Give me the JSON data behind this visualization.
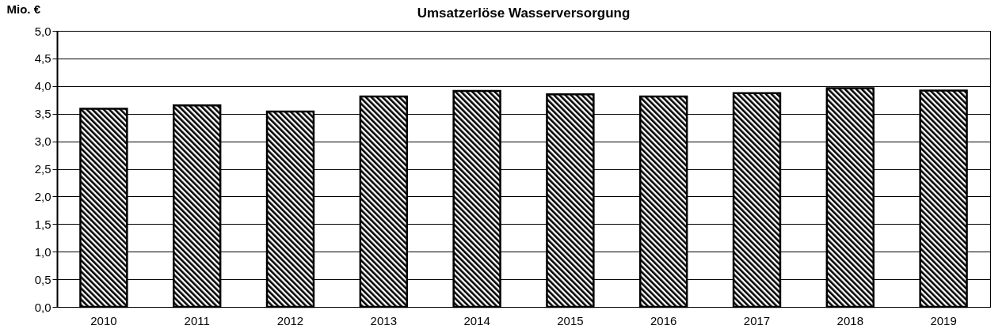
{
  "chart_data": {
    "type": "bar",
    "title": "Umsatzerlöse Wasserversorgung",
    "ylabel": "Mio. €",
    "categories": [
      "2010",
      "2011",
      "2012",
      "2013",
      "2014",
      "2015",
      "2016",
      "2017",
      "2018",
      "2019"
    ],
    "values": [
      3.59,
      3.65,
      3.54,
      3.81,
      3.91,
      3.85,
      3.81,
      3.87,
      3.96,
      3.92
    ],
    "color": "#000000",
    "ylim": [
      0,
      5
    ],
    "yticks": [
      {
        "value": 0,
        "label": "0,0"
      },
      {
        "value": 0.5,
        "label": "0,5"
      },
      {
        "value": 1,
        "label": "1,0"
      },
      {
        "value": 1.5,
        "label": "1,5"
      },
      {
        "value": 2,
        "label": "2,0"
      },
      {
        "value": 2.5,
        "label": "2,5"
      },
      {
        "value": 3,
        "label": "3,0"
      },
      {
        "value": 3.5,
        "label": "3,5"
      },
      {
        "value": 4,
        "label": "4,0"
      },
      {
        "value": 4.5,
        "label": "4,5"
      },
      {
        "value": 5,
        "label": "5,0"
      }
    ],
    "grid": "y"
  }
}
